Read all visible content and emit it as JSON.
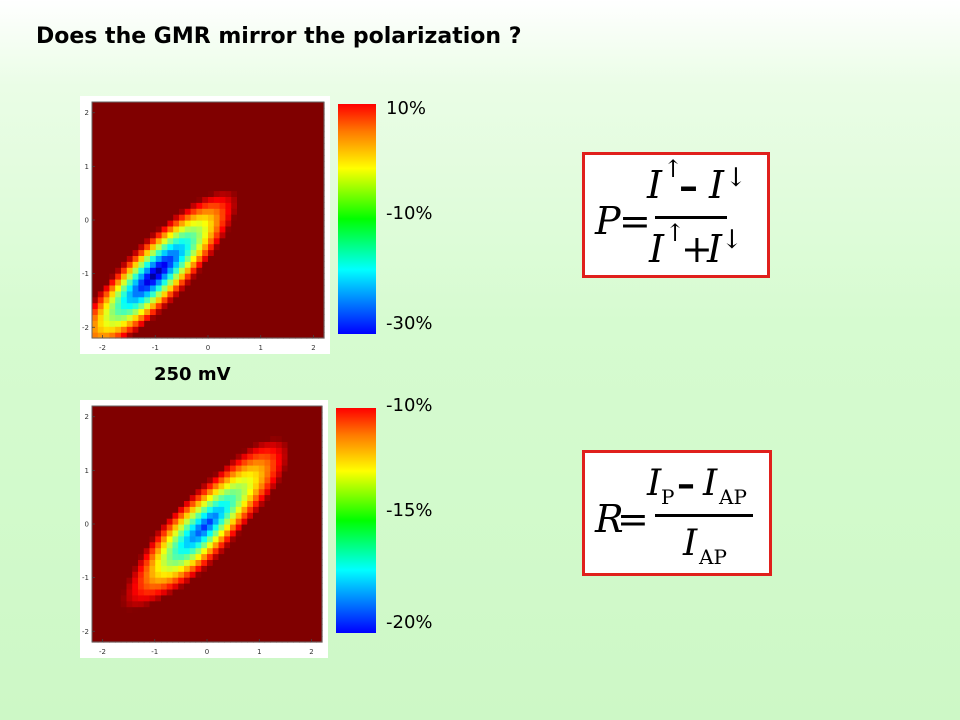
{
  "slide": {
    "title": "Does the GMR mirror the polarization ?"
  },
  "chart_data": [
    {
      "type": "heatmap",
      "title": "",
      "xlabel": "",
      "ylabel": "",
      "xlim": [
        -2.2,
        2.2
      ],
      "ylim": [
        -2.2,
        2.2
      ],
      "x_ticks": [
        "-2",
        "-1",
        "0",
        "1",
        "2"
      ],
      "y_ticks": [
        "-2",
        "-1",
        "0",
        "1",
        "2"
      ],
      "colorbar_ticks": [
        "10%",
        "-10%",
        "-30%"
      ],
      "value_range_percent": [
        -30,
        10
      ],
      "minimum_location": [
        -1,
        -1
      ],
      "pattern": "elongated minimum valley along the x = y diagonal",
      "caption": "250 mV"
    },
    {
      "type": "heatmap",
      "title": "",
      "xlabel": "",
      "ylabel": "",
      "xlim": [
        -2.2,
        2.2
      ],
      "ylim": [
        -2.2,
        2.2
      ],
      "x_ticks": [
        "-2",
        "-1",
        "0",
        "1",
        "2"
      ],
      "y_ticks": [
        "-2",
        "-1",
        "0",
        "1",
        "2"
      ],
      "colorbar_ticks": [
        "-10%",
        "-15%",
        "-20%"
      ],
      "value_range_percent": [
        -20,
        -10
      ],
      "minimum_location": [
        0,
        0
      ],
      "pattern": "elongated minimum valley along the x = y diagonal"
    }
  ],
  "formulas": {
    "polarization": {
      "lhs": "P",
      "equals": "=",
      "num_a": "I",
      "num_a_sup": "↑",
      "num_op": "–",
      "num_b": "I",
      "num_b_sup": "↓",
      "den_a": "I",
      "den_a_sup": "↑",
      "den_op": "+",
      "den_b": "I",
      "den_b_sup": "↓"
    },
    "gmr": {
      "lhs": "R",
      "equals": "=",
      "num_a": "I",
      "num_a_sub": "P",
      "num_op": "–",
      "num_b": "I",
      "num_b_sub": "AP",
      "den": "I",
      "den_sub": "AP"
    }
  },
  "colors": {
    "box_border": "#e0201c",
    "jet_low": "#0000ff",
    "jet_high": "#ff0000"
  }
}
